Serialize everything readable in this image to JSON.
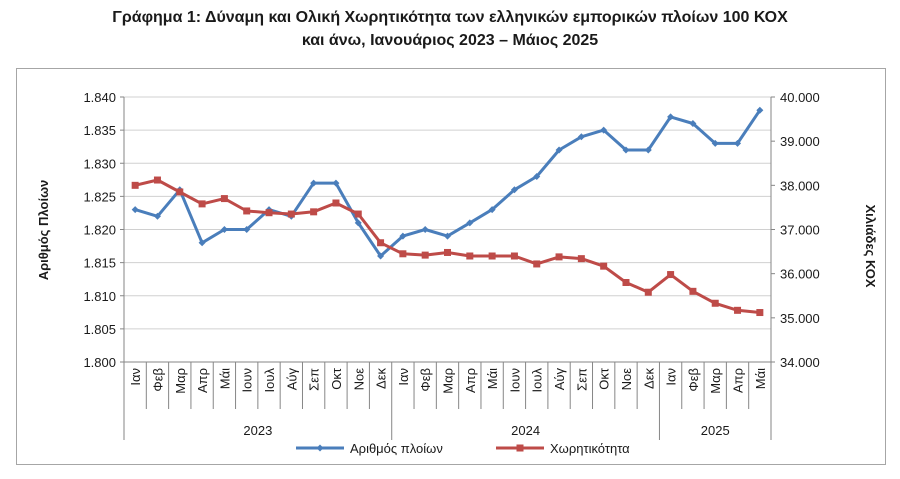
{
  "chart_data": {
    "type": "line",
    "title_line1": "Γράφημα 1: Δύναμη και Ολική Χωρητικότητα των ελληνικών εμπορικών πλοίων 100 ΚΟΧ",
    "title_line2": "και άνω, Ιανουάριος 2023 – Μάιος 2025",
    "ylabel": "Αριθμός Πλοίων",
    "y2label": "Χιλιάδες ΚΟΧ",
    "ylim": [
      1800,
      1840
    ],
    "y2lim": [
      34000,
      40000
    ],
    "y_ticks": [
      "1.800",
      "1.805",
      "1.810",
      "1.815",
      "1.820",
      "1.825",
      "1.830",
      "1.835",
      "1.840"
    ],
    "y2_ticks": [
      "34.000",
      "35.000",
      "36.000",
      "37.000",
      "38.000",
      "39.000",
      "40.000"
    ],
    "months": [
      "Ιαν",
      "Φεβ",
      "Μαρ",
      "Απρ",
      "Μάι",
      "Ιουν",
      "Ιουλ",
      "Αύγ",
      "Σεπ",
      "Οκτ",
      "Νοε",
      "Δεκ",
      "Ιαν",
      "Φεβ",
      "Μαρ",
      "Απρ",
      "Μάι",
      "Ιουν",
      "Ιουλ",
      "Αύγ",
      "Σεπ",
      "Οκτ",
      "Νοε",
      "Δεκ",
      "Ιαν",
      "Φεβ",
      "Μαρ",
      "Απρ",
      "Μάι"
    ],
    "years": [
      {
        "label": "2023",
        "count": 12
      },
      {
        "label": "2024",
        "count": 12
      },
      {
        "label": "2025",
        "count": 5
      }
    ],
    "series": [
      {
        "name": "Αριθμός πλοίων",
        "axis": "left",
        "color": "#4a7ebb",
        "marker": "diamond",
        "values": [
          1823,
          1822,
          1826,
          1818,
          1820,
          1820,
          1823,
          1822,
          1827,
          1827,
          1821,
          1816,
          1819,
          1820,
          1819,
          1821,
          1823,
          1826,
          1828,
          1832,
          1834,
          1835,
          1832,
          1832,
          1837,
          1836,
          1833,
          1833,
          1838
        ]
      },
      {
        "name": "Χωρητικότητα",
        "axis": "right",
        "color": "#be4b48",
        "marker": "square",
        "values": [
          38000,
          38120,
          37850,
          37580,
          37700,
          37420,
          37380,
          37350,
          37400,
          37600,
          37350,
          36700,
          36450,
          36420,
          36480,
          36400,
          36400,
          36400,
          36220,
          36380,
          36340,
          36170,
          35800,
          35580,
          35980,
          35600,
          35330,
          35170,
          35120
        ]
      }
    ],
    "grid": true,
    "legend": "bottom"
  }
}
